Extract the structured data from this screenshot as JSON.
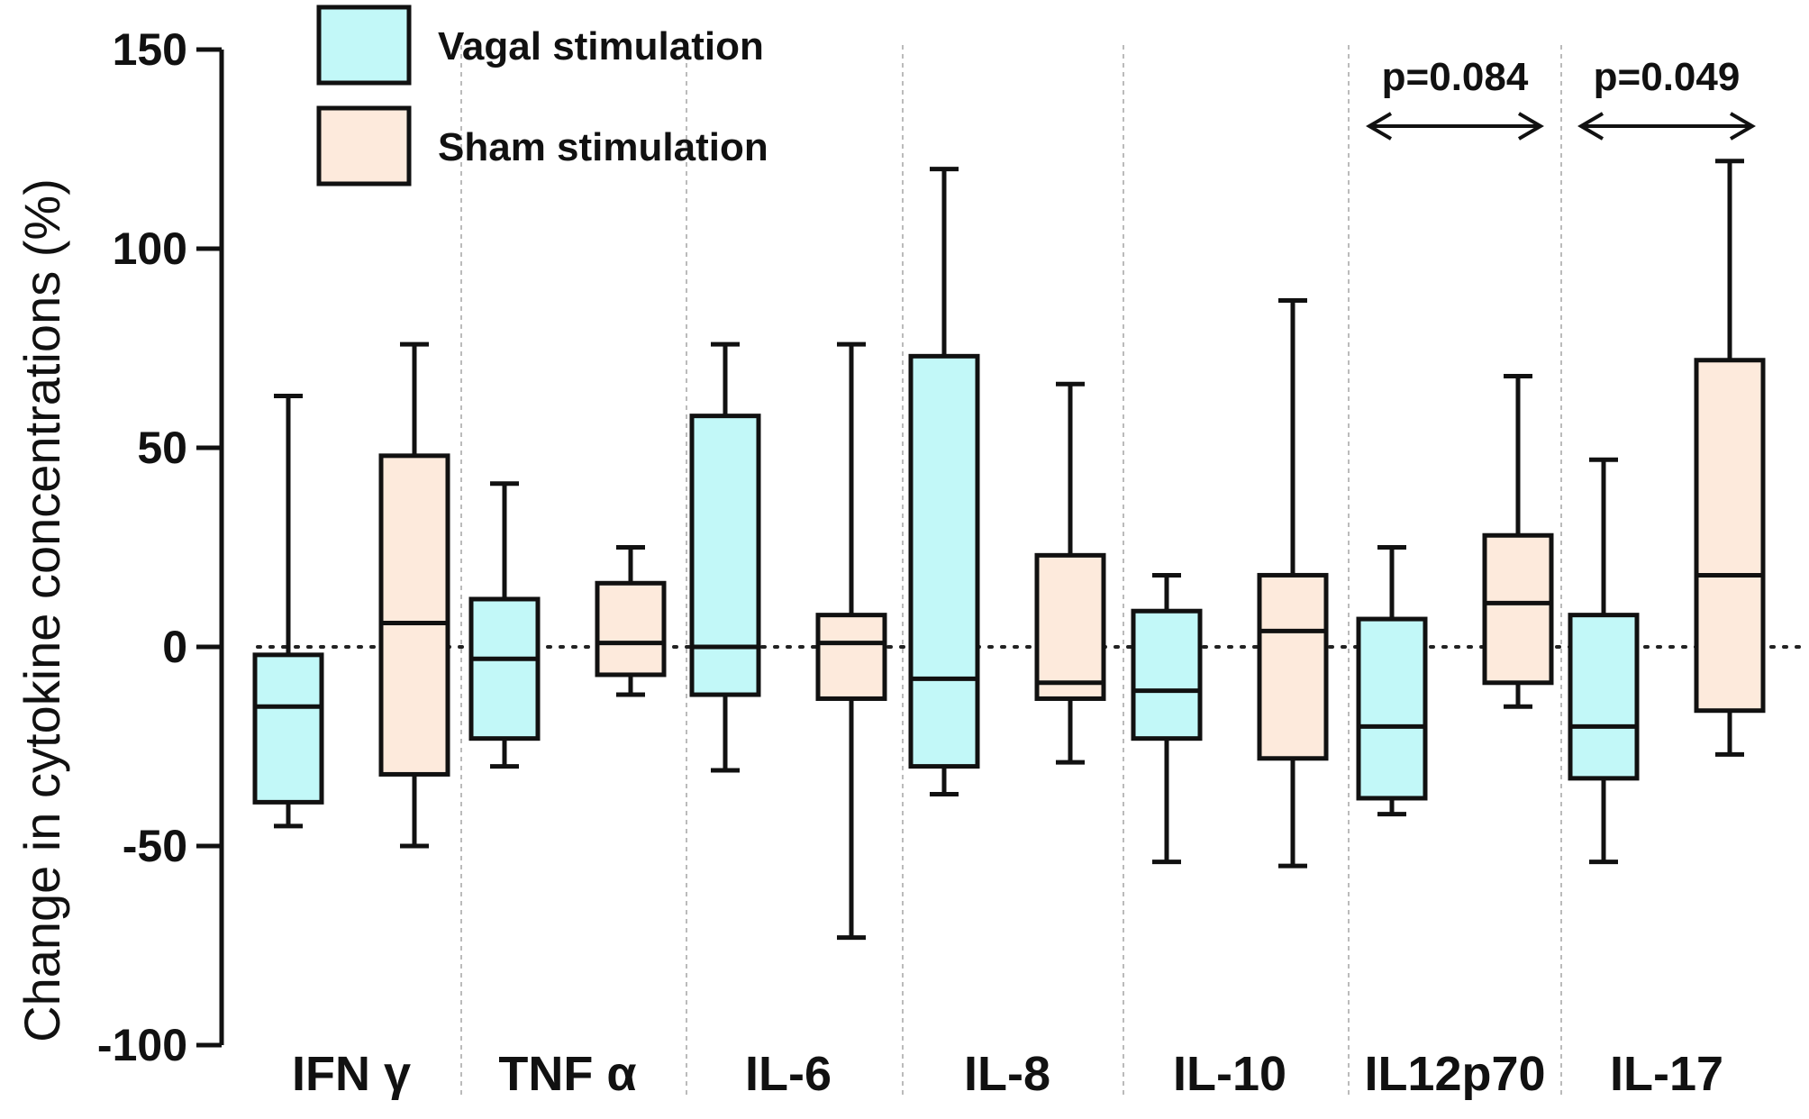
{
  "chart_data": {
    "type": "box",
    "title": "",
    "xlabel": "",
    "ylabel": "Change in cytokine concentrations (%)",
    "ylim": [
      -100,
      150
    ],
    "yticks": [
      "150",
      "100",
      "50",
      "0",
      "-50",
      "-100"
    ],
    "reference_line": 0,
    "categories": [
      "IFN γ",
      "TNF α",
      "IL-6",
      "IL-8",
      "IL-10",
      "IL12p70",
      "IL-17"
    ],
    "legend": {
      "position": "top-left"
    },
    "series": [
      {
        "name": "Vagal stimulation",
        "color": "#c2f8f8",
        "boxes": [
          {
            "whisker_low": -45,
            "q1": -39,
            "median": -15,
            "q3": -2,
            "whisker_high": 63
          },
          {
            "whisker_low": -30,
            "q1": -23,
            "median": -3,
            "q3": 12,
            "whisker_high": 41
          },
          {
            "whisker_low": -31,
            "q1": -12,
            "median": 0,
            "q3": 58,
            "whisker_high": 76
          },
          {
            "whisker_low": -37,
            "q1": -30,
            "median": -8,
            "q3": 73,
            "whisker_high": 120
          },
          {
            "whisker_low": -54,
            "q1": -23,
            "median": -11,
            "q3": 9,
            "whisker_high": 18
          },
          {
            "whisker_low": -42,
            "q1": -38,
            "median": -20,
            "q3": 7,
            "whisker_high": 25
          },
          {
            "whisker_low": -54,
            "q1": -33,
            "median": -20,
            "q3": 8,
            "whisker_high": 47
          }
        ]
      },
      {
        "name": "Sham stimulation",
        "color": "#fdeadc",
        "boxes": [
          {
            "whisker_low": -50,
            "q1": -32,
            "median": 6,
            "q3": 48,
            "whisker_high": 76
          },
          {
            "whisker_low": -12,
            "q1": -7,
            "median": 1,
            "q3": 16,
            "whisker_high": 25
          },
          {
            "whisker_low": -73,
            "q1": -13,
            "median": 1,
            "q3": 8,
            "whisker_high": 76
          },
          {
            "whisker_low": -29,
            "q1": -13,
            "median": -9,
            "q3": 23,
            "whisker_high": 66
          },
          {
            "whisker_low": -55,
            "q1": -28,
            "median": 4,
            "q3": 18,
            "whisker_high": 87
          },
          {
            "whisker_low": -15,
            "q1": -9,
            "median": 11,
            "q3": 28,
            "whisker_high": 68
          },
          {
            "whisker_low": -27,
            "q1": -16,
            "median": 18,
            "q3": 72,
            "whisker_high": 122
          }
        ]
      }
    ],
    "annotations": [
      {
        "category": "IL12p70",
        "text": "p=0.084"
      },
      {
        "category": "IL-17",
        "text": "p=0.049"
      }
    ]
  }
}
